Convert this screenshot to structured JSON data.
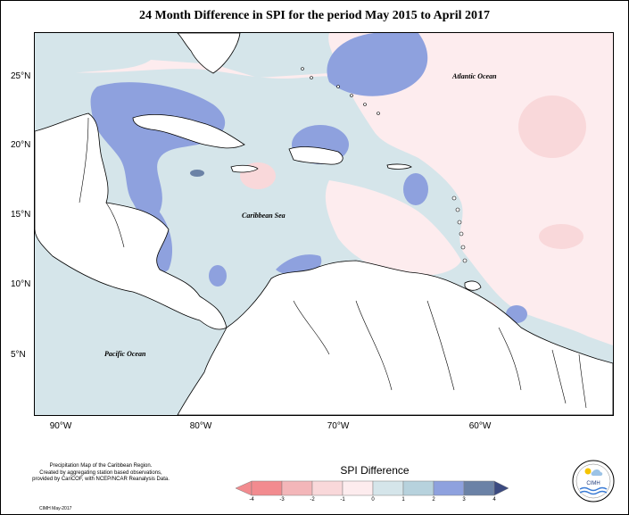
{
  "title": "24 Month Difference in SPI for the period May 2015 to April 2017",
  "map": {
    "latitude_labels": [
      "25°N",
      "20°N",
      "15°N",
      "10°N",
      "5°N"
    ],
    "longitude_labels": [
      "90°W",
      "80°W",
      "70°W",
      "60°W"
    ],
    "ocean_labels": {
      "atlantic": "Atlantic Ocean",
      "caribbean": "Caribbean Sea",
      "pacific": "Pacific Ocean"
    }
  },
  "footer": {
    "lines": [
      "Precipitation Map of the Caribbean Region.",
      "Created by aggregating station based observations,",
      "provided by CariCOF, with NCEP/NCAR Reanalysis Data."
    ],
    "credit": "CIMH May-2017"
  },
  "legend": {
    "title": "SPI Difference",
    "ticks": [
      "-4",
      "-3",
      "-2",
      "-1",
      "0",
      "1",
      "2",
      "3",
      "4"
    ],
    "colors": [
      "#f28b8f",
      "#f3b6b9",
      "#f9d8da",
      "#fdecee",
      "#d5e5ea",
      "#b7d2dd",
      "#8ea1de",
      "#6b82a6",
      "#3b4a80"
    ]
  },
  "logo": {
    "text": "CIMH",
    "icon": "cimh-logo-icon"
  }
}
